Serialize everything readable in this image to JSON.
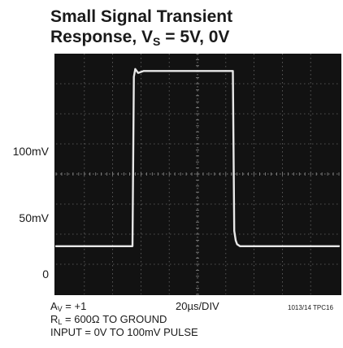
{
  "chart_data": {
    "type": "line",
    "title_line1": "Small Signal Transient",
    "title_line2_prefix": "Response, V",
    "title_line2_sub": "S",
    "title_line2_suffix": " = 5V, 0V",
    "ytick_labels": [
      "100mV",
      "50mV",
      "0"
    ],
    "ytick_values": [
      100,
      50,
      0
    ],
    "y_unit": "mV",
    "time_div_label": "20µs/DIV",
    "x_unit": "µs",
    "xlim": [
      0,
      200
    ],
    "ylim": [
      -25,
      100
    ],
    "grid": true,
    "series": [
      {
        "x": [
          0,
          54,
          55,
          56,
          58,
          62,
          70,
          100,
          125,
          126,
          127,
          128,
          130,
          140,
          200
        ],
        "y": [
          0,
          0,
          88,
          92,
          90,
          91,
          91,
          91,
          91,
          8,
          3,
          1,
          0,
          0,
          0
        ]
      }
    ]
  },
  "footer": {
    "gain_prefix": "A",
    "gain_sub": "V",
    "gain_suffix": " = +1",
    "load_prefix": "R",
    "load_sub": "L",
    "load_suffix": " = 600Ω TO GROUND",
    "input": "INPUT = 0V TO 100mV PULSE",
    "figure_id": "1013/14 TPC16"
  }
}
